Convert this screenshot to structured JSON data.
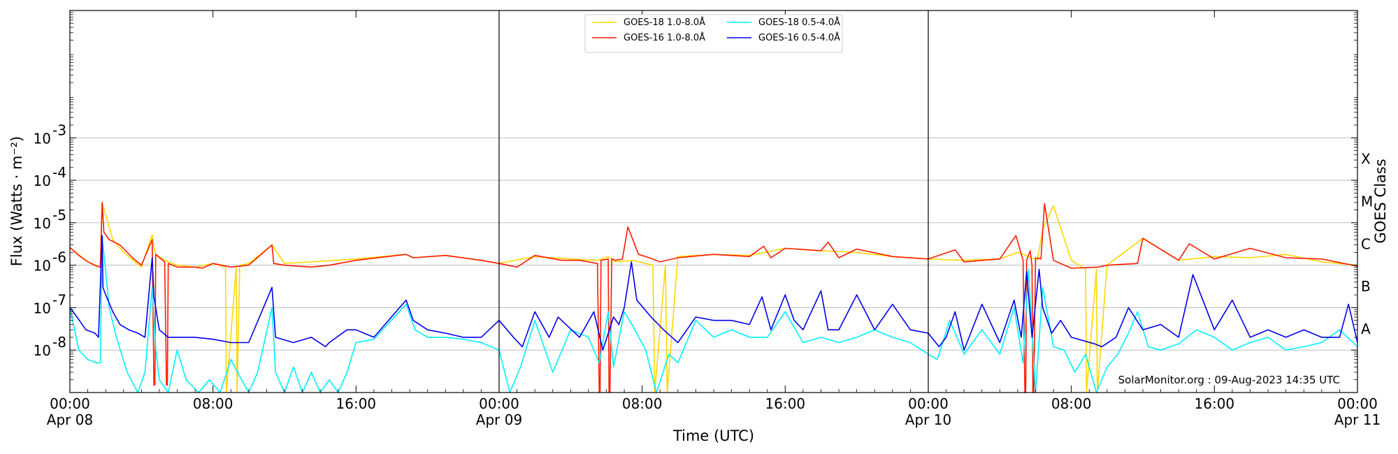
{
  "chart_data": {
    "type": "line",
    "xlabel": "Time (UTC)",
    "ylabel": "Flux (Watts · m⁻²)",
    "right_label": "GOES Class",
    "y_scale": "log",
    "ylim_exponent": [
      -9,
      0
    ],
    "y_ticks": [
      {
        "base": "10",
        "exp": "-8",
        "value": 1e-08
      },
      {
        "base": "10",
        "exp": "-7",
        "value": 1e-07
      },
      {
        "base": "10",
        "exp": "-6",
        "value": 1e-06
      },
      {
        "base": "10",
        "exp": "-5",
        "value": 1e-05
      },
      {
        "base": "10",
        "exp": "-4",
        "value": 0.0001
      },
      {
        "base": "10",
        "exp": "-3",
        "value": 0.001
      }
    ],
    "x_range_hours": [
      0,
      72
    ],
    "x_ticks": [
      {
        "hour": 0,
        "time": "00:00",
        "date": "Apr 08"
      },
      {
        "hour": 8,
        "time": "08:00",
        "date": ""
      },
      {
        "hour": 16,
        "time": "16:00",
        "date": ""
      },
      {
        "hour": 24,
        "time": "00:00",
        "date": "Apr 09"
      },
      {
        "hour": 32,
        "time": "08:00",
        "date": ""
      },
      {
        "hour": 40,
        "time": "16:00",
        "date": ""
      },
      {
        "hour": 48,
        "time": "00:00",
        "date": "Apr 10"
      },
      {
        "hour": 56,
        "time": "08:00",
        "date": ""
      },
      {
        "hour": 64,
        "time": "16:00",
        "date": ""
      },
      {
        "hour": 72,
        "time": "00:00",
        "date": "Apr 11"
      }
    ],
    "day_boundaries_hours": [
      24,
      48
    ],
    "goes_classes": [
      {
        "label": "A",
        "value": 1e-08
      },
      {
        "label": "B",
        "value": 1e-07
      },
      {
        "label": "C",
        "value": 1e-06
      },
      {
        "label": "M",
        "value": 1e-05
      },
      {
        "label": "X",
        "value": 0.0001
      }
    ],
    "legend": [
      {
        "name": "GOES-18 1.0-8.0Å",
        "color": "#ffd700"
      },
      {
        "name": "GOES-16 1.0-8.0Å",
        "color": "#ff1a00"
      },
      {
        "name": "GOES-18 0.5-4.0Å",
        "color": "#00f0ff"
      },
      {
        "name": "GOES-16 0.5-4.0Å",
        "color": "#0000ee"
      }
    ],
    "series": [
      {
        "name": "GOES-18 1.0-8.0Å",
        "color": "#ffd700",
        "x_hours": [
          0,
          1.0,
          1.7,
          1.8,
          2.4,
          3.0,
          4.0,
          4.6,
          4.7,
          4.8,
          5.3,
          6.0,
          7.0,
          8.0,
          8.7,
          8.75,
          9.3,
          9.35,
          9.5,
          10,
          11.3,
          12,
          13.5,
          16,
          18.8,
          19.2,
          21,
          23,
          24,
          26,
          28,
          29.5,
          30.1,
          30.5,
          31.5,
          32.6,
          32.7,
          33.3,
          33.4,
          34,
          36,
          38,
          40,
          42,
          44,
          46,
          48,
          50,
          52,
          53,
          53.8,
          54.1,
          54.4,
          55,
          56,
          56.8,
          56.85,
          57.4,
          57.45,
          58,
          60,
          62,
          64,
          66,
          68,
          70,
          72
        ],
        "y": [
          2.6e-06,
          1.2e-06,
          9e-07,
          3e-05,
          4e-06,
          2e-06,
          9e-07,
          5.2e-06,
          2.5e-06,
          1.8e-06,
          1.3e-06,
          1e-06,
          9e-07,
          1.1e-06,
          9e-07,
          5e-10,
          9e-07,
          5e-10,
          1e-06,
          1.1e-06,
          3e-06,
          1.1e-06,
          1.2e-06,
          1.4e-06,
          1.8e-06,
          1.5e-06,
          1.7e-06,
          1.3e-06,
          1.1e-06,
          1.6e-06,
          1.4e-06,
          1.3e-06,
          1.6e-06,
          1.2e-06,
          1.3e-06,
          1e-06,
          5e-10,
          1e-06,
          5e-10,
          1.6e-06,
          1.8e-06,
          1.7e-06,
          2.5e-06,
          2.2e-06,
          2e-06,
          1.6e-06,
          1.4e-06,
          1.3e-06,
          1.4e-06,
          2e-06,
          1.5e-06,
          1.3e-06,
          7e-06,
          2.5e-05,
          1.3e-06,
          8e-07,
          5e-10,
          8e-07,
          5e-10,
          1e-06,
          4.3e-06,
          1.3e-06,
          1.6e-06,
          1.5e-06,
          1.8e-06,
          1.2e-06,
          1e-06
        ]
      },
      {
        "name": "GOES-16 1.0-8.0Å",
        "color": "#ff1a00",
        "x_hours": [
          0,
          0.5,
          1.0,
          1.5,
          1.7,
          1.8,
          1.9,
          2.2,
          2.8,
          3.5,
          4.0,
          4.6,
          4.7,
          4.75,
          4.8,
          5.3,
          5.4,
          5.45,
          5.5,
          6.0,
          7.0,
          7.4,
          8.0,
          9.0,
          10,
          11.3,
          11.4,
          12,
          13.5,
          14.5,
          16,
          18.8,
          19.2,
          21,
          23,
          24,
          25,
          26,
          27.5,
          28.5,
          29.5,
          29.6,
          29.65,
          29.7,
          30.1,
          30.15,
          30.2,
          30.3,
          30.5,
          30.9,
          31.2,
          31.8,
          32.4,
          33,
          34,
          36,
          38,
          38.8,
          39.2,
          40,
          42,
          42.4,
          43,
          44,
          46,
          48,
          49.5,
          50,
          52,
          52.9,
          53.3,
          53.4,
          53.45,
          53.5,
          53.7,
          53.8,
          53.85,
          53.9,
          54.0,
          54.3,
          54.5,
          55,
          56,
          57.5,
          58,
          59.7,
          60,
          62,
          62.6,
          64,
          66,
          68,
          70,
          72
        ],
        "y": [
          2.6e-06,
          1.7e-06,
          1.2e-06,
          9.5e-07,
          9e-07,
          3e-05,
          6e-06,
          4e-06,
          3e-06,
          1.5e-06,
          1e-06,
          4e-06,
          1.5e-09,
          1.5e-09,
          1.8e-06,
          1.2e-06,
          1.5e-09,
          1.5e-09,
          1.1e-06,
          9e-07,
          9e-07,
          8.5e-07,
          1.1e-06,
          9e-07,
          1e-06,
          3e-06,
          1.1e-06,
          1e-06,
          9e-07,
          1e-06,
          1.3e-06,
          1.8e-06,
          1.5e-06,
          1.7e-06,
          1.3e-06,
          1.1e-06,
          9e-07,
          1.7e-06,
          1.3e-06,
          1.3e-06,
          1.1e-06,
          5e-10,
          5e-10,
          1.3e-06,
          1.4e-06,
          5e-10,
          5e-10,
          1.4e-06,
          1.3e-06,
          1.4e-06,
          8e-06,
          1.8e-06,
          1.5e-06,
          1.2e-06,
          1.5e-06,
          1.8e-06,
          1.6e-06,
          2.8e-06,
          1.5e-06,
          2.5e-06,
          2.2e-06,
          3.5e-06,
          1.5e-06,
          2.4e-06,
          1.6e-06,
          1.4e-06,
          2.3e-06,
          1.2e-06,
          1.4e-06,
          5e-06,
          1.3e-06,
          5e-10,
          5e-10,
          1.3e-06,
          2.2e-06,
          1e-06,
          5e-10,
          5e-10,
          1.5e-06,
          1.4e-06,
          2.8e-05,
          1.3e-06,
          8.5e-07,
          9e-07,
          1e-06,
          1.1e-06,
          4.3e-06,
          1.3e-06,
          3.2e-06,
          1.4e-06,
          2.5e-06,
          1.5e-06,
          1.4e-06,
          9.5e-07
        ]
      },
      {
        "name": "GOES-18 0.5-4.0Å",
        "color": "#00f0ff",
        "x_hours": [
          0,
          0.5,
          1.0,
          1.5,
          1.7,
          1.8,
          2.2,
          2.6,
          3.2,
          3.8,
          4.2,
          4.6,
          4.8,
          5.0,
          5.5,
          6.0,
          6.5,
          7.2,
          7.8,
          8.4,
          9.0,
          9.6,
          10.0,
          10.5,
          11.3,
          11.5,
          12.0,
          12.5,
          13.0,
          13.5,
          14.0,
          14.5,
          15.0,
          15.5,
          16,
          17,
          18.8,
          19.3,
          20,
          21,
          22,
          23,
          24,
          24.6,
          25.2,
          26,
          27,
          28,
          29,
          29.6,
          30.1,
          30.4,
          31,
          31.6,
          32.2,
          32.8,
          33.5,
          34,
          35,
          36,
          37,
          38,
          39,
          40,
          41,
          42,
          43,
          44,
          45,
          46,
          47,
          48,
          48.5,
          49.2,
          50,
          51,
          52,
          52.8,
          53.3,
          53.6,
          54.0,
          54.4,
          55,
          55.6,
          56.2,
          56.8,
          57.4,
          58,
          58.6,
          59.2,
          59.7,
          60.3,
          61,
          62,
          63,
          64,
          65,
          66,
          67,
          68,
          69,
          70,
          71,
          72
        ],
        "y": [
          1e-07,
          1e-08,
          6e-09,
          5e-09,
          5e-09,
          5e-06,
          1e-07,
          2e-08,
          3e-09,
          1e-09,
          3e-09,
          3e-07,
          1e-08,
          2e-09,
          8e-10,
          1e-08,
          2e-09,
          8e-10,
          2e-09,
          5e-10,
          6e-09,
          2e-09,
          5e-10,
          3e-09,
          1e-07,
          3e-09,
          1e-09,
          4e-09,
          5e-10,
          3e-09,
          8e-10,
          2e-09,
          6e-10,
          3e-09,
          1.5e-08,
          1.8e-08,
          1.2e-07,
          3e-08,
          2e-08,
          2e-08,
          1.8e-08,
          1.5e-08,
          1e-08,
          1e-09,
          4e-09,
          5e-08,
          3e-09,
          3e-08,
          2e-08,
          5e-09,
          8e-08,
          4e-09,
          8e-08,
          3e-08,
          1e-08,
          8e-10,
          8e-09,
          5e-09,
          5e-08,
          2e-08,
          3e-08,
          2e-08,
          2e-08,
          8e-08,
          1.5e-08,
          2e-08,
          1.5e-08,
          2e-08,
          3e-08,
          2e-08,
          1.5e-08,
          8e-09,
          6e-09,
          5e-08,
          8e-09,
          3e-08,
          8e-09,
          1e-07,
          5e-09,
          8e-07,
          1e-09,
          3e-07,
          1.2e-08,
          1e-08,
          3e-09,
          8e-09,
          1e-09,
          4e-09,
          8e-09,
          2.5e-08,
          8e-08,
          1.2e-08,
          1e-08,
          1.4e-08,
          3e-08,
          2e-08,
          1e-08,
          1.5e-08,
          2e-08,
          1e-08,
          1.2e-08,
          1.5e-08,
          3e-08,
          1.2e-08
        ]
      },
      {
        "name": "GOES-16 0.5-4.0Å",
        "color": "#0000ee",
        "x_hours": [
          0,
          0.4,
          0.9,
          1.4,
          1.6,
          1.8,
          1.85,
          2.0,
          2.4,
          2.8,
          3.3,
          3.8,
          4.2,
          4.6,
          4.7,
          5.0,
          5.5,
          6.0,
          7.0,
          8.0,
          9.0,
          10.0,
          11.3,
          11.5,
          12.5,
          13.5,
          14.3,
          14.5,
          15.5,
          16,
          17,
          18.8,
          19.2,
          20,
          21,
          22,
          23,
          24,
          24.8,
          25.3,
          26,
          26.8,
          27.3,
          28.5,
          29.3,
          29.8,
          30.4,
          30.7,
          31.0,
          31.4,
          31.7,
          32.5,
          33.2,
          34,
          35,
          36,
          37,
          38,
          38.7,
          39.2,
          40,
          40.5,
          41,
          42,
          42.4,
          43,
          44,
          45,
          46,
          47,
          48,
          48.6,
          49.0,
          49.5,
          50,
          51,
          52,
          52.8,
          53.2,
          53.5,
          53.8,
          54.2,
          54.4,
          54.9,
          55.4,
          56,
          57.3,
          57.7,
          58.5,
          59.2,
          60,
          61,
          62,
          62.8,
          64,
          65,
          66,
          67,
          68,
          69,
          70,
          71,
          71.5,
          72
        ],
        "y": [
          1e-07,
          6e-08,
          3e-08,
          2.5e-08,
          2e-08,
          5e-06,
          3e-07,
          2e-07,
          8e-08,
          4e-08,
          3e-08,
          2.5e-08,
          2e-08,
          1.5e-06,
          1.8e-07,
          3e-08,
          2e-08,
          2e-08,
          2e-08,
          1.8e-08,
          1.5e-08,
          1.5e-08,
          3e-07,
          2e-08,
          1.5e-08,
          2e-08,
          1.2e-08,
          1.5e-08,
          3e-08,
          3e-08,
          2e-08,
          1.5e-07,
          5e-08,
          3e-08,
          2.5e-08,
          2e-08,
          2e-08,
          5e-08,
          2e-08,
          1.2e-08,
          8e-08,
          2e-08,
          6e-08,
          2e-08,
          8e-08,
          1e-08,
          6e-08,
          4e-08,
          1e-07,
          1.2e-06,
          1.5e-07,
          6e-08,
          3e-08,
          1.5e-08,
          6e-08,
          5e-08,
          5e-08,
          4e-08,
          1.8e-07,
          3e-08,
          2e-07,
          5e-08,
          3e-08,
          2.5e-07,
          3e-08,
          3e-08,
          2e-07,
          3e-08,
          1.2e-07,
          3e-08,
          2.5e-08,
          1.2e-08,
          2e-08,
          8e-08,
          1e-08,
          1.2e-07,
          1.5e-08,
          1.5e-07,
          2e-08,
          7e-07,
          2e-08,
          8e-07,
          1e-07,
          2.5e-08,
          5e-08,
          2e-08,
          1.4e-08,
          1.2e-08,
          2e-08,
          1e-07,
          3e-08,
          4e-08,
          2e-08,
          6e-07,
          3e-08,
          1.5e-07,
          2e-08,
          3e-08,
          2e-08,
          3e-08,
          2e-08,
          2e-08,
          1.2e-07,
          1.5e-08
        ]
      }
    ],
    "credit": "SolarMonitor.org : 09-Aug-2023 14:35 UTC"
  }
}
